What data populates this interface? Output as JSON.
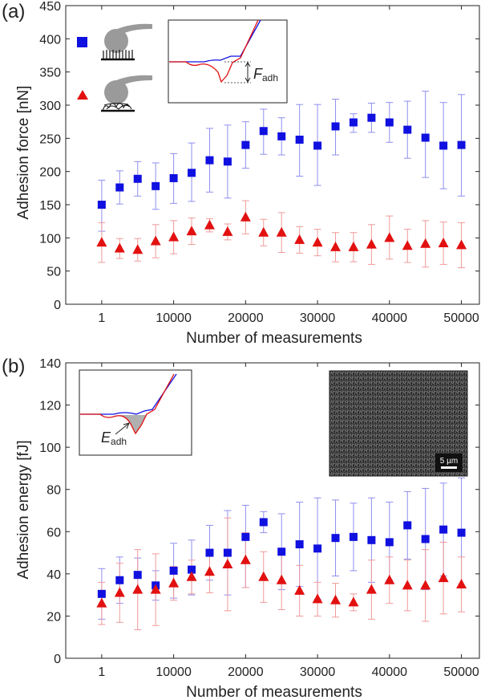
{
  "colors": {
    "series_a": "#1010e0",
    "series_b": "#e21010",
    "err_a": "#8f8fef",
    "err_b": "#f09a9a",
    "cartoon": "#9a9a9a",
    "sem_bg": "#303030"
  },
  "panel_a": {
    "label": "(a)",
    "inset_label_main": "F",
    "inset_label_sub": "adh"
  },
  "panel_b": {
    "label": "(b)",
    "inset_label_main": "E",
    "inset_label_sub": "adh",
    "scale_bar_label": "5 µm"
  },
  "chart_data": [
    {
      "type": "scatter",
      "panel": "a",
      "ylabel": "Adhesion force [nN]",
      "xlabel": "Number of measurements",
      "xlim": [
        -5000,
        52500
      ],
      "ylim": [
        0,
        450
      ],
      "x_ticks": [
        1,
        10000,
        20000,
        30000,
        40000,
        50000
      ],
      "x_tick_labels": [
        "1",
        "10000",
        "20000",
        "30000",
        "40000",
        "50000"
      ],
      "y_ticks": [
        0,
        50,
        100,
        150,
        200,
        250,
        300,
        350,
        400,
        450
      ],
      "grid": false,
      "legend": "top-left (cartoon icons)",
      "x": [
        1,
        2500,
        5000,
        7500,
        10000,
        12500,
        15000,
        17500,
        20000,
        22500,
        25000,
        27500,
        30000,
        32500,
        35000,
        37500,
        40000,
        42500,
        45000,
        47500,
        50000
      ],
      "series": [
        {
          "marker": "square",
          "color": "#1010e0",
          "values": [
            150,
            176,
            189,
            178,
            190,
            198,
            217,
            215,
            240,
            261,
            253,
            248,
            239,
            268,
            274,
            281,
            274,
            263,
            251,
            239,
            240
          ],
          "err_low": [
            40,
            25,
            26,
            35,
            38,
            43,
            48,
            55,
            35,
            35,
            28,
            55,
            60,
            43,
            15,
            22,
            30,
            43,
            60,
            65,
            77
          ],
          "err_high": [
            37,
            25,
            26,
            35,
            37,
            45,
            48,
            55,
            35,
            33,
            28,
            53,
            62,
            41,
            13,
            22,
            30,
            43,
            70,
            65,
            76
          ]
        },
        {
          "marker": "triangle",
          "color": "#e21010",
          "values": [
            93,
            84,
            82,
            95,
            101,
            110,
            119,
            109,
            131,
            108,
            108,
            97,
            93,
            86,
            86,
            90,
            100,
            88,
            91,
            92,
            89
          ],
          "err_low": [
            30,
            15,
            17,
            25,
            25,
            20,
            10,
            12,
            25,
            20,
            30,
            20,
            20,
            22,
            22,
            30,
            32,
            25,
            35,
            32,
            34
          ],
          "err_high": [
            30,
            15,
            17,
            25,
            25,
            20,
            10,
            12,
            25,
            20,
            30,
            20,
            20,
            22,
            22,
            30,
            33,
            25,
            35,
            32,
            34
          ]
        }
      ]
    },
    {
      "type": "scatter",
      "panel": "b",
      "ylabel": "Adhesion energy [fJ]",
      "xlabel": "Number of measurements",
      "xlim": [
        -5000,
        52500
      ],
      "ylim": [
        0,
        140
      ],
      "x_ticks": [
        1,
        10000,
        20000,
        30000,
        40000,
        50000
      ],
      "x_tick_labels": [
        "1",
        "10000",
        "20000",
        "30000",
        "40000",
        "50000"
      ],
      "y_ticks": [
        0,
        20,
        40,
        60,
        80,
        100,
        120,
        140
      ],
      "grid": false,
      "x": [
        1,
        2500,
        5000,
        7500,
        10000,
        12500,
        15000,
        17500,
        20000,
        22500,
        25000,
        27500,
        30000,
        32500,
        35000,
        37500,
        40000,
        42500,
        45000,
        47500,
        50000
      ],
      "series": [
        {
          "marker": "square",
          "color": "#1010e0",
          "values": [
            30.5,
            37,
            39.5,
            34.5,
            41.5,
            42,
            50,
            50,
            57.5,
            64.5,
            50.5,
            54,
            52,
            57,
            57.5,
            56,
            55,
            63,
            56.5,
            61,
            59.5
          ],
          "err_low": [
            12,
            11,
            8,
            7,
            13,
            12,
            13,
            20,
            24,
            5,
            18,
            20,
            24,
            18,
            16,
            20,
            18,
            16,
            24,
            22,
            26
          ],
          "err_high": [
            12,
            11,
            8,
            7,
            13,
            14,
            13,
            20,
            15,
            5,
            18,
            20,
            24,
            18,
            16,
            20,
            19,
            16,
            24,
            22,
            26
          ]
        },
        {
          "marker": "triangle",
          "color": "#e21010",
          "values": [
            26,
            31,
            32.5,
            32.5,
            35.5,
            38.5,
            41,
            44.5,
            46.5,
            38.5,
            37,
            32,
            28,
            27.5,
            26.5,
            32.5,
            37,
            34.5,
            34.5,
            38,
            35
          ],
          "err_low": [
            10,
            14,
            19,
            17,
            8,
            8,
            10,
            22,
            13,
            12,
            14,
            12,
            8,
            8,
            4,
            14,
            11,
            12,
            17,
            17,
            13
          ],
          "err_high": [
            10,
            14,
            19,
            17,
            8,
            8,
            10,
            22,
            13,
            12,
            14,
            12,
            8,
            8,
            4,
            14,
            11,
            12,
            17,
            17,
            13
          ]
        }
      ]
    }
  ]
}
